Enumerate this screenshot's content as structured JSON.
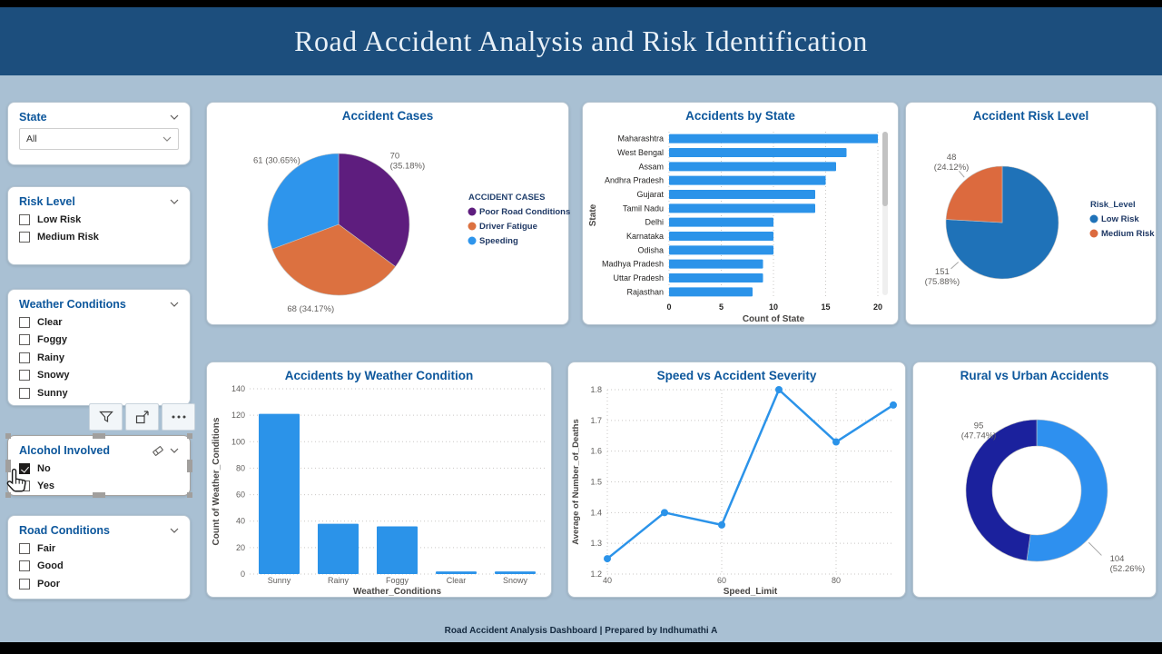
{
  "header": {
    "title": "Road Accident Analysis and Risk Identification"
  },
  "footer": {
    "text": "Road Accident Analysis Dashboard | Prepared by Indhumathi A"
  },
  "colors": {
    "header_bg": "#1c4e7d",
    "page_bg": "#a9c0d3",
    "bar_blue": "#2b93e9"
  },
  "sidebar": {
    "filters": [
      {
        "id": "state",
        "title": "State",
        "type": "dropdown",
        "value": "All"
      },
      {
        "id": "risk",
        "title": "Risk Level",
        "type": "checkboxes",
        "options": [
          {
            "label": "Low Risk",
            "checked": false
          },
          {
            "label": "Medium Risk",
            "checked": false
          }
        ]
      },
      {
        "id": "weather",
        "title": "Weather Conditions",
        "type": "checkboxes",
        "options": [
          {
            "label": "Clear",
            "checked": false
          },
          {
            "label": "Foggy",
            "checked": false
          },
          {
            "label": "Rainy",
            "checked": false
          },
          {
            "label": "Snowy",
            "checked": false
          },
          {
            "label": "Sunny",
            "checked": false
          }
        ]
      },
      {
        "id": "alcohol",
        "title": "Alcohol Involved",
        "type": "checkboxes",
        "selected": true,
        "header_icons": [
          "eraser-icon",
          "chevron-down-icon"
        ],
        "options": [
          {
            "label": "No",
            "checked": true
          },
          {
            "label": "Yes",
            "checked": false
          }
        ]
      },
      {
        "id": "road",
        "title": "Road Conditions",
        "type": "checkboxes",
        "options": [
          {
            "label": "Fair",
            "checked": false
          },
          {
            "label": "Good",
            "checked": false
          },
          {
            "label": "Poor",
            "checked": false
          }
        ]
      }
    ],
    "hover_toolbar": [
      "filter-icon",
      "focus-mode-icon",
      "more-options-icon"
    ]
  },
  "chart_data": [
    {
      "id": "accident-cases",
      "type": "pie",
      "title": "Accident Cases",
      "legend_title": "ACCIDENT CASES",
      "legend_position": "right",
      "slices": [
        {
          "name": "Poor Road Conditions",
          "value": 70,
          "pct": "35.18%",
          "color": "#5e1d7e",
          "label_lines": [
            "70",
            "(35.18%)"
          ]
        },
        {
          "name": "Driver Fatigue",
          "value": 68,
          "pct": "34.17%",
          "color": "#dc7140",
          "label_lines": [
            "68 (34.17%)"
          ]
        },
        {
          "name": "Speeding",
          "value": 61,
          "pct": "30.65%",
          "color": "#2e95ec",
          "label_lines": [
            "61 (30.65%)"
          ]
        }
      ]
    },
    {
      "id": "accidents-by-state",
      "type": "bar",
      "orientation": "horizontal",
      "title": "Accidents by State",
      "categories": [
        "Maharashtra",
        "West Bengal",
        "Assam",
        "Andhra Pradesh",
        "Gujarat",
        "Tamil Nadu",
        "Delhi",
        "Karnataka",
        "Odisha",
        "Madhya Pradesh",
        "Uttar Pradesh",
        "Rajasthan"
      ],
      "values": [
        20,
        17,
        16,
        15,
        14,
        14,
        10,
        10,
        10,
        9,
        9,
        8
      ],
      "xlabel": "Count of State",
      "ylabel": "State",
      "xticks": [
        0,
        5,
        10,
        15,
        20
      ],
      "xlim": [
        0,
        20
      ],
      "bar_color": "#2b93e9",
      "grid": true,
      "scrollbar": true
    },
    {
      "id": "risk-level",
      "type": "pie",
      "title": "Accident Risk Level",
      "legend_title": "Risk_Level",
      "legend_position": "right",
      "slices": [
        {
          "name": "Low Risk",
          "value": 151,
          "pct": "75.88%",
          "color": "#1f72b8",
          "label_lines": [
            "151",
            "(75.88%)"
          ]
        },
        {
          "name": "Medium Risk",
          "value": 48,
          "pct": "24.12%",
          "color": "#dc6a3e",
          "label_lines": [
            "48",
            "(24.12%)"
          ]
        }
      ]
    },
    {
      "id": "weather-condition",
      "type": "bar",
      "orientation": "vertical",
      "title": "Accidents by Weather Condition",
      "categories": [
        "Sunny",
        "Rainy",
        "Foggy",
        "Clear",
        "Snowy"
      ],
      "values": [
        121,
        38,
        36,
        2,
        2
      ],
      "xlabel": "Weather_Conditions",
      "ylabel": "Count of Weather_Conditions",
      "yticks": [
        0,
        20,
        40,
        60,
        80,
        100,
        120,
        140
      ],
      "ylim": [
        0,
        140
      ],
      "bar_color": "#2b93e9",
      "grid": true
    },
    {
      "id": "speed-severity",
      "type": "line",
      "title": "Speed vs Accident Severity",
      "x": [
        40,
        50,
        60,
        70,
        80,
        90
      ],
      "y": [
        1.25,
        1.4,
        1.36,
        1.8,
        1.63,
        1.75
      ],
      "xlabel": "Speed_Limit",
      "ylabel": "Average of Number_of_Deaths",
      "xticks": [
        40,
        60,
        80
      ],
      "yticks": [
        1.2,
        1.3,
        1.4,
        1.5,
        1.6,
        1.7,
        1.8
      ],
      "xlim": [
        40,
        90
      ],
      "ylim": [
        1.2,
        1.8
      ],
      "line_color": "#2b93e9",
      "grid": true
    },
    {
      "id": "rural-urban",
      "type": "donut",
      "title": "Rural vs Urban Accidents",
      "slices": [
        {
          "value": 104,
          "pct": "52.26%",
          "color": "#2e90ef",
          "label_lines": [
            "104",
            "(52.26%)"
          ]
        },
        {
          "value": 95,
          "pct": "47.74%",
          "color": "#1b219d",
          "label_lines": [
            "95",
            "(47.74%)"
          ]
        }
      ]
    }
  ]
}
